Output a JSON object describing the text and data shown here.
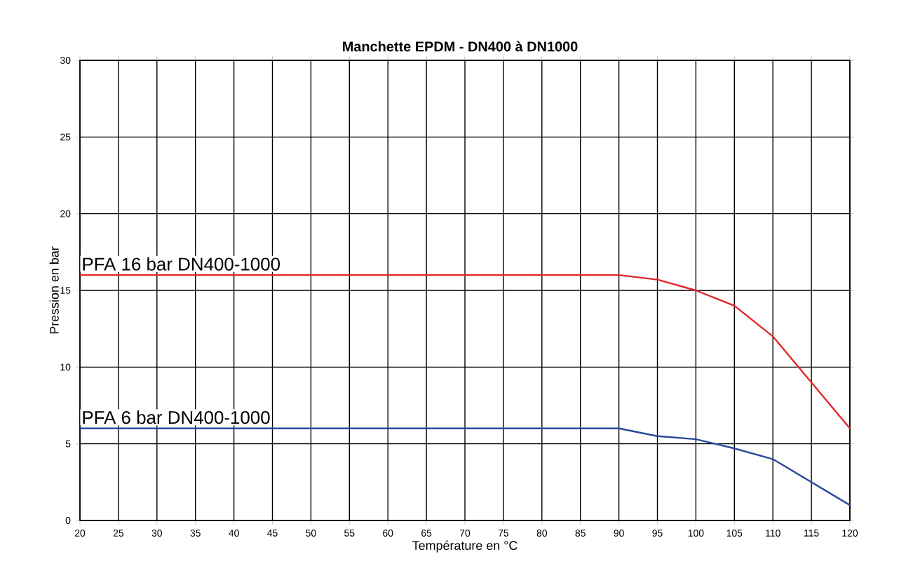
{
  "chart_data": {
    "type": "line",
    "title": "Manchette EPDM - DN400 à DN1000",
    "xlabel": "Température en °C",
    "ylabel": "Pression en bar",
    "x": [
      20,
      90,
      95,
      100,
      105,
      110,
      120
    ],
    "series": [
      {
        "name": "PFA 16 bar DN400-1000",
        "color": "#e3262b",
        "values": [
          16,
          16,
          15.7,
          15,
          14,
          12,
          6
        ]
      },
      {
        "name": "PFA 6 bar DN400-1000",
        "color": "#2b4a9b",
        "values": [
          6,
          6,
          5.5,
          5.3,
          4.7,
          4,
          1
        ]
      }
    ],
    "xlim": [
      20,
      120
    ],
    "ylim": [
      0,
      30
    ],
    "xticks": [
      20,
      25,
      30,
      35,
      40,
      45,
      50,
      55,
      60,
      65,
      70,
      75,
      80,
      85,
      90,
      95,
      100,
      105,
      110,
      115,
      120
    ],
    "yticks": [
      0,
      5,
      10,
      15,
      20,
      25,
      30
    ],
    "grid": true,
    "marker": "none",
    "line_style": "solid"
  }
}
